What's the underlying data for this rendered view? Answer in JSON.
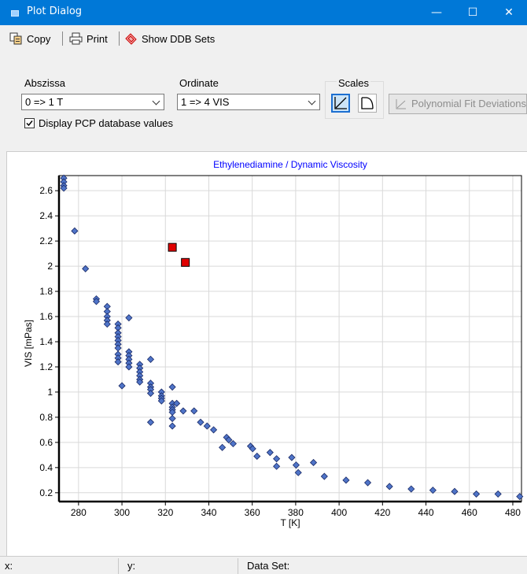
{
  "window": {
    "title": "Plot Dialog",
    "minimize": "—",
    "maximize": "☐",
    "close": "✕"
  },
  "toolbar": {
    "copy_label": "Copy",
    "print_label": "Print",
    "show_ddb_label": "Show DDB Sets"
  },
  "abszissa": {
    "label": "Abszissa",
    "value": "0 => 1 T"
  },
  "ordinate": {
    "label": "Ordinate",
    "value": "1 => 4 VIS"
  },
  "scales": {
    "label": "Scales"
  },
  "polyfit": {
    "label": "Polynomial Fit Deviations"
  },
  "display_pcp": {
    "label": "Display PCP database values",
    "checked": true
  },
  "colors": {
    "titlebar": "#0078d7",
    "plot_title": "#0000ff",
    "marker_fill": "#4f74c8",
    "pcp_fill": "#e00000"
  },
  "chart_data": {
    "type": "scatter",
    "title": "Ethylenediamine / Dynamic Viscosity",
    "xlabel": "T [K]",
    "ylabel": "VIS [mPas]",
    "xlim": [
      271,
      484
    ],
    "ylim": [
      0.13,
      2.72
    ],
    "xticks": [
      280,
      300,
      320,
      340,
      360,
      380,
      400,
      420,
      440,
      460,
      480
    ],
    "yticks": [
      0.2,
      0.4,
      0.6,
      0.8,
      1,
      1.2,
      1.4,
      1.6,
      1.8,
      2,
      2.2,
      2.4,
      2.6
    ],
    "grid": true,
    "series": [
      {
        "marker": "diamond",
        "points": [
          [
            273.2,
            2.7
          ],
          [
            273.2,
            2.67
          ],
          [
            273.2,
            2.64
          ],
          [
            273.2,
            2.62
          ],
          [
            278.2,
            2.28
          ],
          [
            283.2,
            1.98
          ],
          [
            288.2,
            1.74
          ],
          [
            288.2,
            1.72
          ],
          [
            293.2,
            1.68
          ],
          [
            293.2,
            1.64
          ],
          [
            293.2,
            1.6
          ],
          [
            293.2,
            1.57
          ],
          [
            293.2,
            1.54
          ],
          [
            298.2,
            1.54
          ],
          [
            298.2,
            1.51
          ],
          [
            298.2,
            1.47
          ],
          [
            298.2,
            1.44
          ],
          [
            298.2,
            1.41
          ],
          [
            298.2,
            1.38
          ],
          [
            298.2,
            1.35
          ],
          [
            298.2,
            1.3
          ],
          [
            298.2,
            1.27
          ],
          [
            298.2,
            1.24
          ],
          [
            300.0,
            1.05
          ],
          [
            303.2,
            1.59
          ],
          [
            303.2,
            1.32
          ],
          [
            303.2,
            1.29
          ],
          [
            303.2,
            1.26
          ],
          [
            303.2,
            1.23
          ],
          [
            303.2,
            1.2
          ],
          [
            308.2,
            1.22
          ],
          [
            308.2,
            1.19
          ],
          [
            308.2,
            1.16
          ],
          [
            308.2,
            1.13
          ],
          [
            308.2,
            1.1
          ],
          [
            308.2,
            1.08
          ],
          [
            313.2,
            1.26
          ],
          [
            313.2,
            1.07
          ],
          [
            313.2,
            1.04
          ],
          [
            313.2,
            1.02
          ],
          [
            313.2,
            0.99
          ],
          [
            313.2,
            0.76
          ],
          [
            318.2,
            1.0
          ],
          [
            318.2,
            0.97
          ],
          [
            318.2,
            0.95
          ],
          [
            318.2,
            0.93
          ],
          [
            323.2,
            1.04
          ],
          [
            323.2,
            0.91
          ],
          [
            323.2,
            0.88
          ],
          [
            323.2,
            0.86
          ],
          [
            323.2,
            0.84
          ],
          [
            323.2,
            0.79
          ],
          [
            323.2,
            0.73
          ],
          [
            325.2,
            0.91
          ],
          [
            328.2,
            0.85
          ],
          [
            333.2,
            0.85
          ],
          [
            336.2,
            0.76
          ],
          [
            339.2,
            0.73
          ],
          [
            342.2,
            0.7
          ],
          [
            346.2,
            0.56
          ],
          [
            348.2,
            0.64
          ],
          [
            349.2,
            0.62
          ],
          [
            351.2,
            0.59
          ],
          [
            359.2,
            0.57
          ],
          [
            360.2,
            0.55
          ],
          [
            362.2,
            0.49
          ],
          [
            368.2,
            0.52
          ],
          [
            371.2,
            0.47
          ],
          [
            371.2,
            0.41
          ],
          [
            378.2,
            0.48
          ],
          [
            380.2,
            0.42
          ],
          [
            381.2,
            0.36
          ],
          [
            388.2,
            0.44
          ],
          [
            393.2,
            0.33
          ],
          [
            403.2,
            0.3
          ],
          [
            413.2,
            0.28
          ],
          [
            423.2,
            0.25
          ],
          [
            433.2,
            0.23
          ],
          [
            443.2,
            0.22
          ],
          [
            453.2,
            0.21
          ],
          [
            463.2,
            0.19
          ],
          [
            473.2,
            0.19
          ],
          [
            483.2,
            0.17
          ]
        ]
      },
      {
        "marker": "square",
        "points": [
          [
            323.2,
            2.15
          ],
          [
            329.2,
            2.03
          ]
        ]
      }
    ]
  },
  "statusbar": {
    "x_label": "x:",
    "y_label": "y:",
    "dataset_label": "Data Set:"
  }
}
